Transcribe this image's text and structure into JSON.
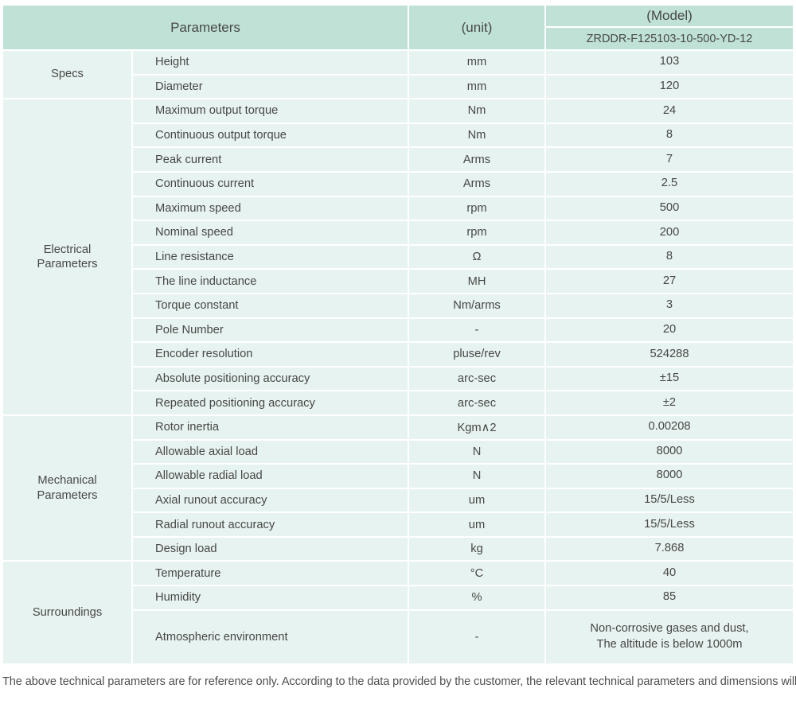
{
  "colors": {
    "header_bg": "#bfe1d6",
    "cell_bg": "#e7f3f0",
    "text": "#474747"
  },
  "table": {
    "header": {
      "parameters": "Parameters",
      "unit": "(unit)",
      "model": "(Model)",
      "model_value": "ZRDDR-F125103-10-500-YD-12"
    },
    "sections": [
      {
        "name": "Specs",
        "rows": [
          {
            "param": "Height",
            "unit": "mm",
            "value": "103"
          },
          {
            "param": "Diameter",
            "unit": "mm",
            "value": "120"
          }
        ]
      },
      {
        "name": "Electrical\nParameters",
        "rows": [
          {
            "param": "Maximum output torque",
            "unit": "Nm",
            "value": "24"
          },
          {
            "param": "Continuous output torque",
            "unit": "Nm",
            "value": "8"
          },
          {
            "param": "Peak current",
            "unit": "Arms",
            "value": "7"
          },
          {
            "param": "Continuous current",
            "unit": "Arms",
            "value": "2.5"
          },
          {
            "param": "Maximum speed",
            "unit": "rpm",
            "value": "500"
          },
          {
            "param": "Nominal speed",
            "unit": "rpm",
            "value": "200"
          },
          {
            "param": "Line resistance",
            "unit": "Ω",
            "value": "8"
          },
          {
            "param": "The line inductance",
            "unit": "MH",
            "value": "27"
          },
          {
            "param": "Torque constant",
            "unit": "Nm/arms",
            "value": "3"
          },
          {
            "param": "Pole Number",
            "unit": "-",
            "value": "20"
          },
          {
            "param": "Encoder resolution",
            "unit": "pluse/rev",
            "value": "524288"
          },
          {
            "param": "Absolute positioning accuracy",
            "unit": "arc-sec",
            "value": "±15"
          },
          {
            "param": "Repeated positioning accuracy",
            "unit": "arc-sec",
            "value": "±2"
          }
        ]
      },
      {
        "name": "Mechanical\nParameters",
        "rows": [
          {
            "param": "Rotor inertia",
            "unit": "Kgm∧2",
            "value": "0.00208"
          },
          {
            "param": "Allowable axial load",
            "unit": "N",
            "value": "8000"
          },
          {
            "param": "Allowable radial load",
            "unit": "N",
            "value": "8000"
          },
          {
            "param": "Axial runout accuracy",
            "unit": "um",
            "value": "15/5/Less"
          },
          {
            "param": "Radial runout accuracy",
            "unit": "um",
            "value": "15/5/Less"
          },
          {
            "param": "Design load",
            "unit": "kg",
            "value": "7.868"
          }
        ]
      },
      {
        "name": "Surroundings",
        "rows": [
          {
            "param": "Temperature",
            "unit": "°C",
            "value": "40"
          },
          {
            "param": "Humidity",
            "unit": "%",
            "value": "85"
          },
          {
            "param": "Atmospheric environment",
            "unit": "-",
            "value": "Non-corrosive gases and dust,\nThe altitude is below 1000m",
            "tall": true
          }
        ]
      }
    ]
  },
  "footer_note": "The above technical parameters are for reference only. According to the data provided by the customer, the relevant technical parameters and dimensions will be issued."
}
